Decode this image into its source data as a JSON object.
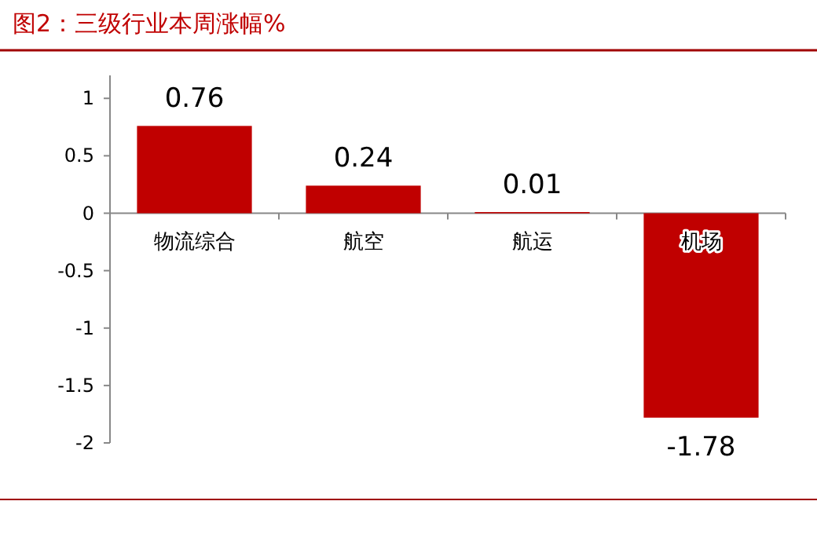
{
  "chart_data": {
    "type": "bar",
    "title": "图2：三级行业本周涨幅%",
    "categories": [
      "物流综合",
      "航空",
      "航运",
      "机场"
    ],
    "values": [
      0.76,
      0.24,
      0.01,
      -1.78
    ],
    "color": "#c00000",
    "ylim": [
      -2,
      1.2
    ],
    "yticks": [
      -2,
      -1.5,
      -1,
      -0.5,
      0,
      0.5,
      1
    ],
    "data_labels": true,
    "grid": false
  }
}
